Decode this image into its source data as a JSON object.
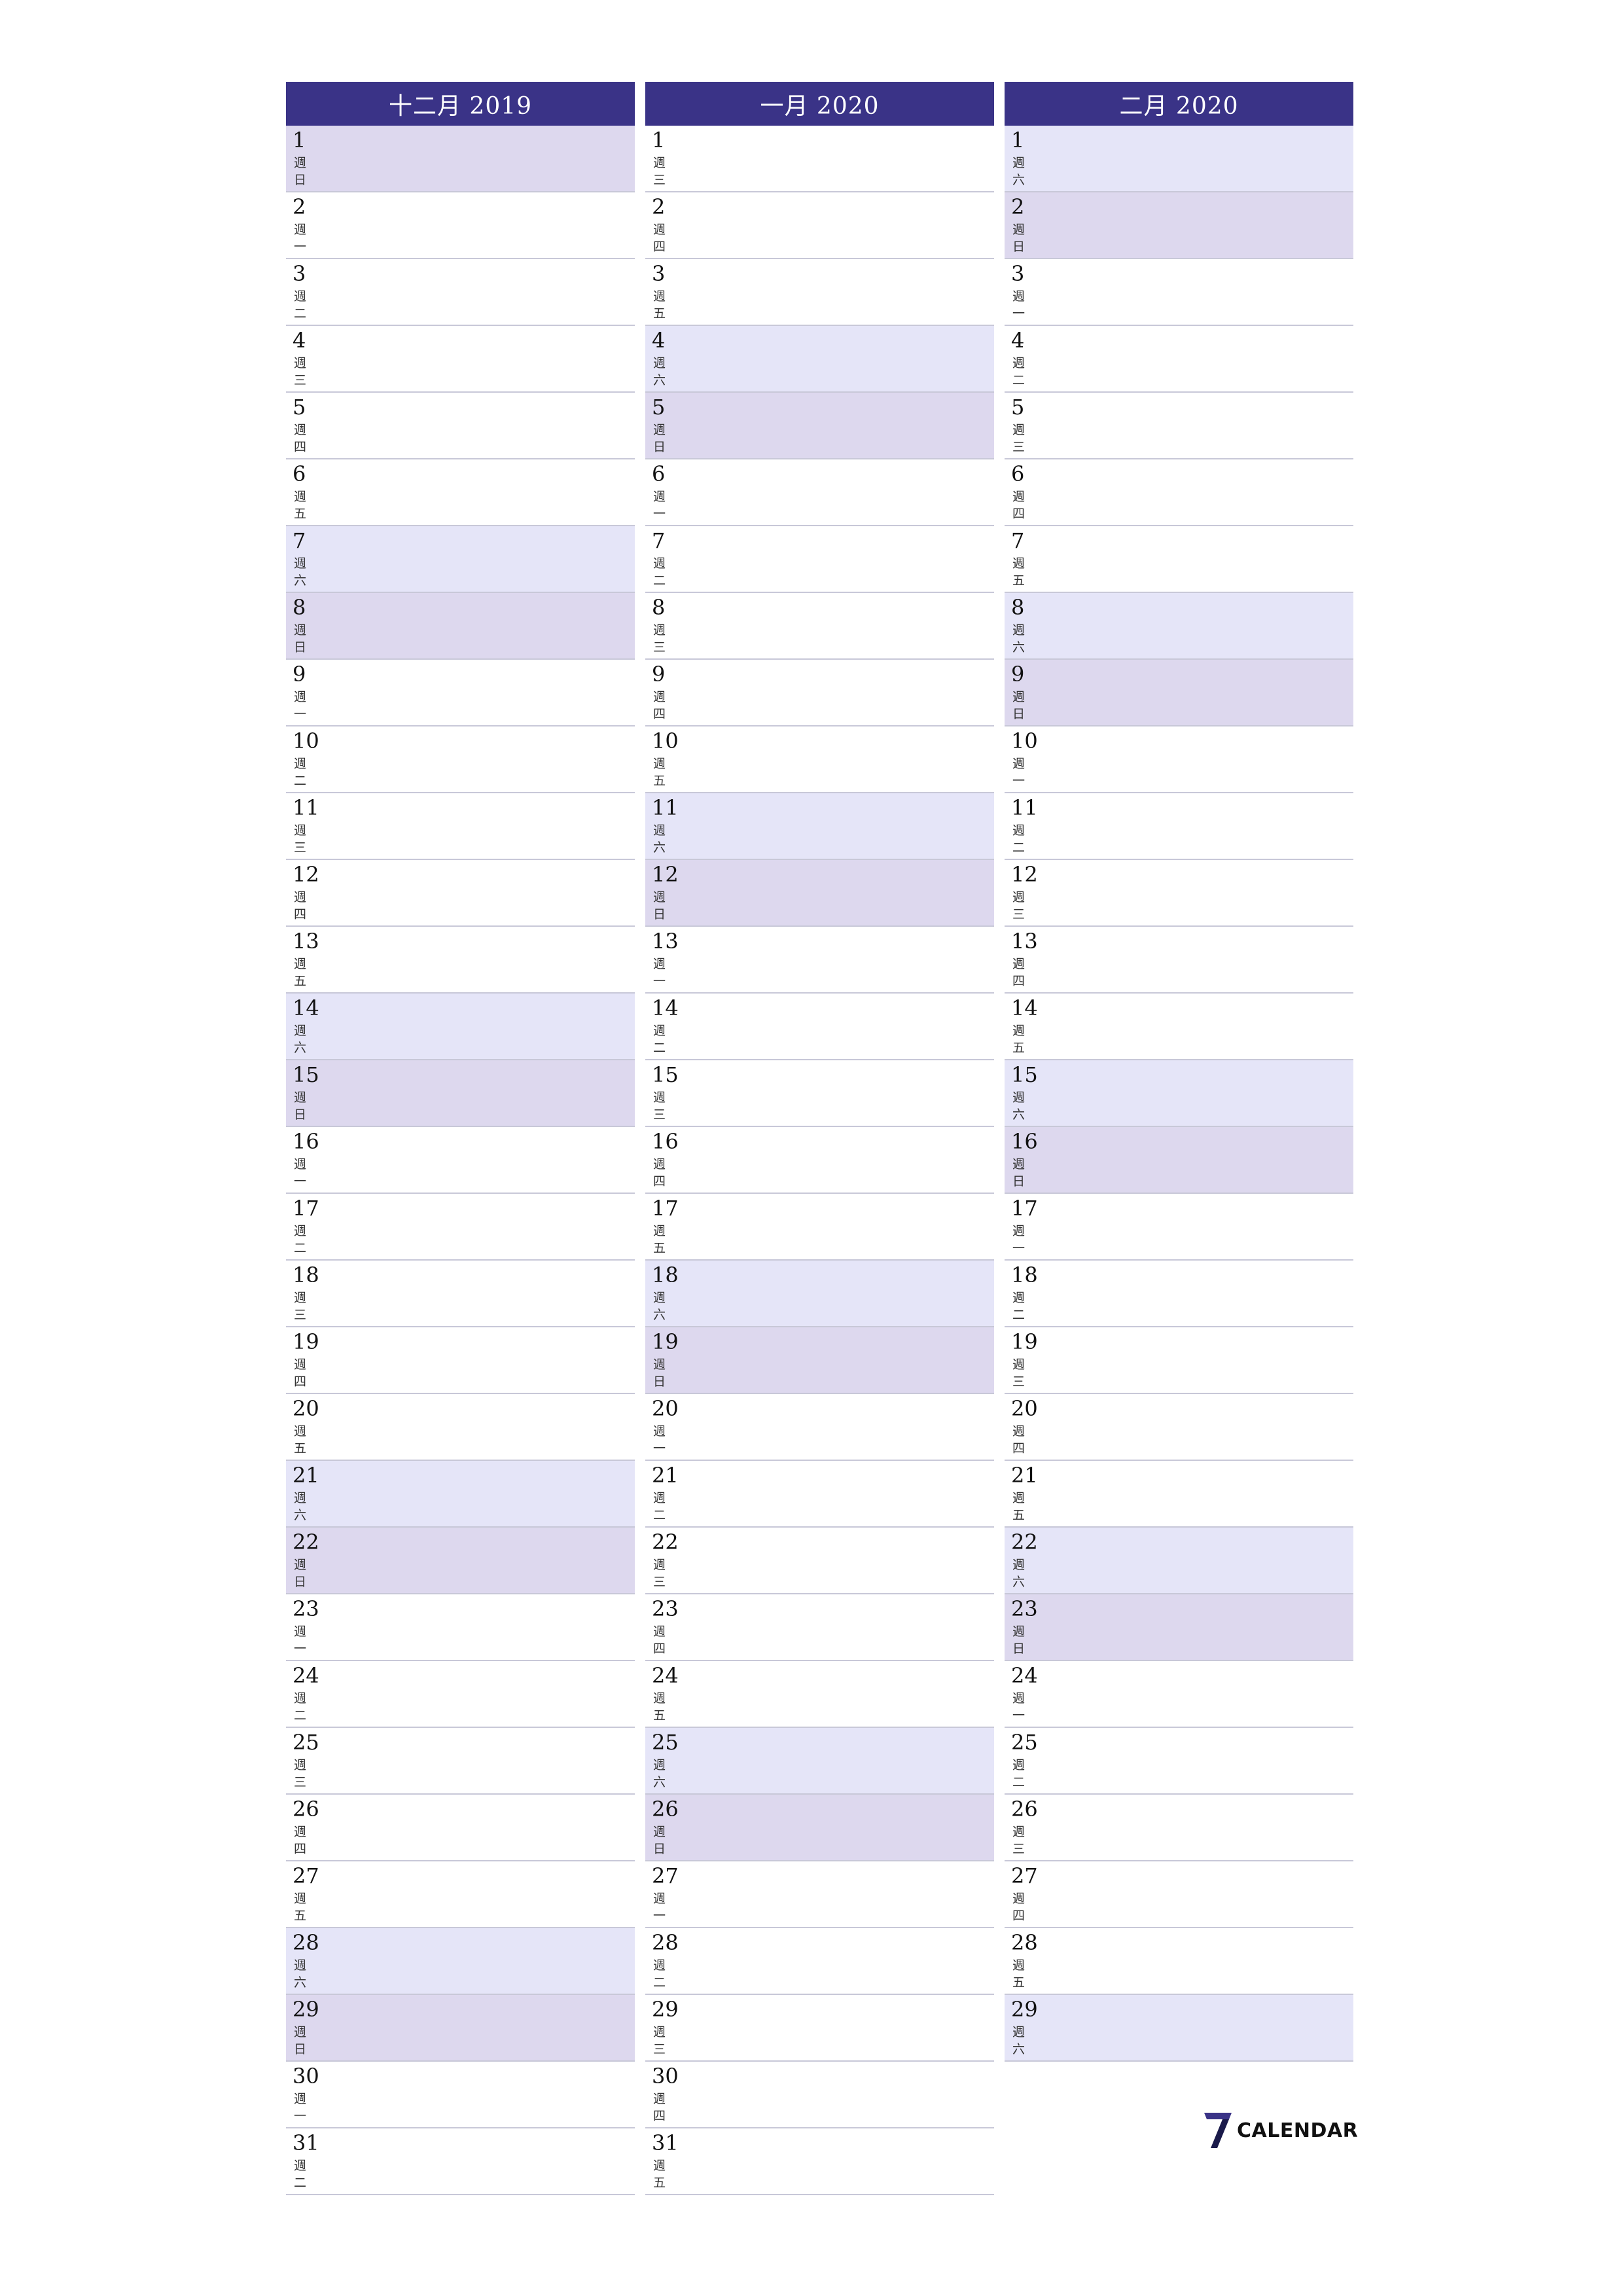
{
  "week_prefix": "週",
  "months": [
    {
      "title": "十二月 2019",
      "days": [
        {
          "n": "1",
          "w": "日"
        },
        {
          "n": "2",
          "w": "一"
        },
        {
          "n": "3",
          "w": "二"
        },
        {
          "n": "4",
          "w": "三"
        },
        {
          "n": "5",
          "w": "四"
        },
        {
          "n": "6",
          "w": "五"
        },
        {
          "n": "7",
          "w": "六"
        },
        {
          "n": "8",
          "w": "日"
        },
        {
          "n": "9",
          "w": "一"
        },
        {
          "n": "10",
          "w": "二"
        },
        {
          "n": "11",
          "w": "三"
        },
        {
          "n": "12",
          "w": "四"
        },
        {
          "n": "13",
          "w": "五"
        },
        {
          "n": "14",
          "w": "六"
        },
        {
          "n": "15",
          "w": "日"
        },
        {
          "n": "16",
          "w": "一"
        },
        {
          "n": "17",
          "w": "二"
        },
        {
          "n": "18",
          "w": "三"
        },
        {
          "n": "19",
          "w": "四"
        },
        {
          "n": "20",
          "w": "五"
        },
        {
          "n": "21",
          "w": "六"
        },
        {
          "n": "22",
          "w": "日"
        },
        {
          "n": "23",
          "w": "一"
        },
        {
          "n": "24",
          "w": "二"
        },
        {
          "n": "25",
          "w": "三"
        },
        {
          "n": "26",
          "w": "四"
        },
        {
          "n": "27",
          "w": "五"
        },
        {
          "n": "28",
          "w": "六"
        },
        {
          "n": "29",
          "w": "日"
        },
        {
          "n": "30",
          "w": "一"
        },
        {
          "n": "31",
          "w": "二"
        }
      ]
    },
    {
      "title": "一月 2020",
      "days": [
        {
          "n": "1",
          "w": "三"
        },
        {
          "n": "2",
          "w": "四"
        },
        {
          "n": "3",
          "w": "五"
        },
        {
          "n": "4",
          "w": "六"
        },
        {
          "n": "5",
          "w": "日"
        },
        {
          "n": "6",
          "w": "一"
        },
        {
          "n": "7",
          "w": "二"
        },
        {
          "n": "8",
          "w": "三"
        },
        {
          "n": "9",
          "w": "四"
        },
        {
          "n": "10",
          "w": "五"
        },
        {
          "n": "11",
          "w": "六"
        },
        {
          "n": "12",
          "w": "日"
        },
        {
          "n": "13",
          "w": "一"
        },
        {
          "n": "14",
          "w": "二"
        },
        {
          "n": "15",
          "w": "三"
        },
        {
          "n": "16",
          "w": "四"
        },
        {
          "n": "17",
          "w": "五"
        },
        {
          "n": "18",
          "w": "六"
        },
        {
          "n": "19",
          "w": "日"
        },
        {
          "n": "20",
          "w": "一"
        },
        {
          "n": "21",
          "w": "二"
        },
        {
          "n": "22",
          "w": "三"
        },
        {
          "n": "23",
          "w": "四"
        },
        {
          "n": "24",
          "w": "五"
        },
        {
          "n": "25",
          "w": "六"
        },
        {
          "n": "26",
          "w": "日"
        },
        {
          "n": "27",
          "w": "一"
        },
        {
          "n": "28",
          "w": "二"
        },
        {
          "n": "29",
          "w": "三"
        },
        {
          "n": "30",
          "w": "四"
        },
        {
          "n": "31",
          "w": "五"
        }
      ]
    },
    {
      "title": "二月 2020",
      "days": [
        {
          "n": "1",
          "w": "六"
        },
        {
          "n": "2",
          "w": "日"
        },
        {
          "n": "3",
          "w": "一"
        },
        {
          "n": "4",
          "w": "二"
        },
        {
          "n": "5",
          "w": "三"
        },
        {
          "n": "6",
          "w": "四"
        },
        {
          "n": "7",
          "w": "五"
        },
        {
          "n": "8",
          "w": "六"
        },
        {
          "n": "9",
          "w": "日"
        },
        {
          "n": "10",
          "w": "一"
        },
        {
          "n": "11",
          "w": "二"
        },
        {
          "n": "12",
          "w": "三"
        },
        {
          "n": "13",
          "w": "四"
        },
        {
          "n": "14",
          "w": "五"
        },
        {
          "n": "15",
          "w": "六"
        },
        {
          "n": "16",
          "w": "日"
        },
        {
          "n": "17",
          "w": "一"
        },
        {
          "n": "18",
          "w": "二"
        },
        {
          "n": "19",
          "w": "三"
        },
        {
          "n": "20",
          "w": "四"
        },
        {
          "n": "21",
          "w": "五"
        },
        {
          "n": "22",
          "w": "六"
        },
        {
          "n": "23",
          "w": "日"
        },
        {
          "n": "24",
          "w": "一"
        },
        {
          "n": "25",
          "w": "二"
        },
        {
          "n": "26",
          "w": "三"
        },
        {
          "n": "27",
          "w": "四"
        },
        {
          "n": "28",
          "w": "五"
        },
        {
          "n": "29",
          "w": "六"
        }
      ]
    }
  ],
  "colors": {
    "header_bg": "#3a3387",
    "saturday_bg": "#e5e5f8",
    "sunday_bg": "#ddd8ee"
  },
  "logo": {
    "icon": "seven-logo-icon",
    "text": "CALENDAR"
  }
}
